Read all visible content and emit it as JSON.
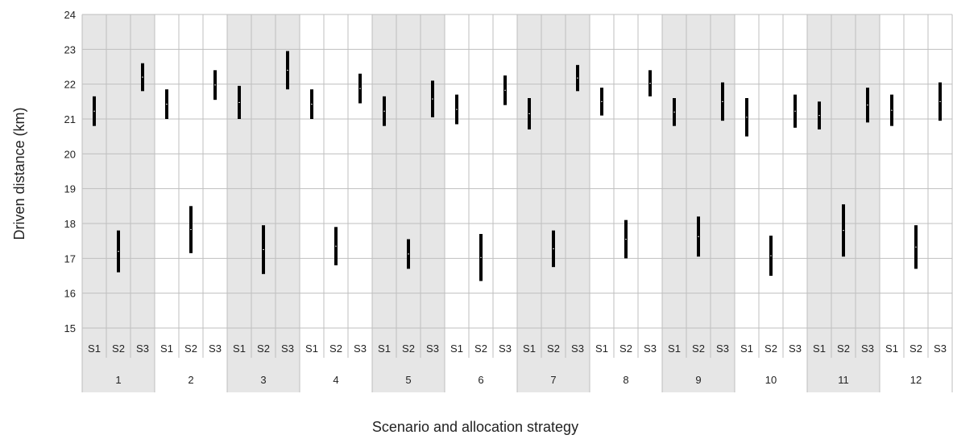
{
  "chart_data": {
    "type": "range",
    "title": "",
    "xlabel": "Scenario and allocation strategy",
    "ylabel": "Driven distance (km)",
    "ylim": [
      15,
      24
    ],
    "yticks": [
      "15",
      "16",
      "17",
      "18",
      "19",
      "20",
      "21",
      "22",
      "23",
      "24"
    ],
    "grid": true,
    "strategies": [
      "S1",
      "S2",
      "S3"
    ],
    "scenarios": [
      "1",
      "2",
      "3",
      "4",
      "5",
      "6",
      "7",
      "8",
      "9",
      "10",
      "11",
      "12"
    ],
    "shaded_scenarios": [
      "1",
      "3",
      "5",
      "7",
      "9",
      "11"
    ],
    "shade_color": "#e6e6e6",
    "grid_color": "#bfbfbf",
    "bar_color": "#000000",
    "ranges": [
      {
        "scenario": "1",
        "S1": [
          20.8,
          21.65
        ],
        "S2": [
          16.6,
          17.8
        ],
        "S3": [
          21.8,
          22.6
        ]
      },
      {
        "scenario": "2",
        "S1": [
          21.0,
          21.85
        ],
        "S2": [
          17.15,
          18.5
        ],
        "S3": [
          21.55,
          22.4
        ]
      },
      {
        "scenario": "3",
        "S1": [
          21.0,
          21.95
        ],
        "S2": [
          16.55,
          17.95
        ],
        "S3": [
          21.85,
          22.95
        ]
      },
      {
        "scenario": "4",
        "S1": [
          21.0,
          21.85
        ],
        "S2": [
          16.8,
          17.9
        ],
        "S3": [
          21.45,
          22.3
        ]
      },
      {
        "scenario": "5",
        "S1": [
          20.8,
          21.65
        ],
        "S2": [
          16.7,
          17.55
        ],
        "S3": [
          21.05,
          22.1
        ]
      },
      {
        "scenario": "6",
        "S1": [
          20.85,
          21.7
        ],
        "S2": [
          16.35,
          17.7
        ],
        "S3": [
          21.4,
          22.25
        ]
      },
      {
        "scenario": "7",
        "S1": [
          20.7,
          21.6
        ],
        "S2": [
          16.75,
          17.8
        ],
        "S3": [
          21.8,
          22.55
        ]
      },
      {
        "scenario": "8",
        "S1": [
          21.1,
          21.9
        ],
        "S2": [
          17.0,
          18.1
        ],
        "S3": [
          21.65,
          22.4
        ]
      },
      {
        "scenario": "9",
        "S1": [
          20.8,
          21.6
        ],
        "S2": [
          17.05,
          18.2
        ],
        "S3": [
          20.95,
          22.05
        ]
      },
      {
        "scenario": "10",
        "S1": [
          20.5,
          21.6
        ],
        "S2": [
          16.5,
          17.65
        ],
        "S3": [
          20.75,
          21.7
        ]
      },
      {
        "scenario": "11",
        "S1": [
          20.7,
          21.5
        ],
        "S2": [
          17.05,
          18.55
        ],
        "S3": [
          20.9,
          21.9
        ]
      },
      {
        "scenario": "12",
        "S1": [
          20.8,
          21.7
        ],
        "S2": [
          16.7,
          17.95
        ],
        "S3": [
          20.95,
          22.05
        ]
      }
    ]
  }
}
